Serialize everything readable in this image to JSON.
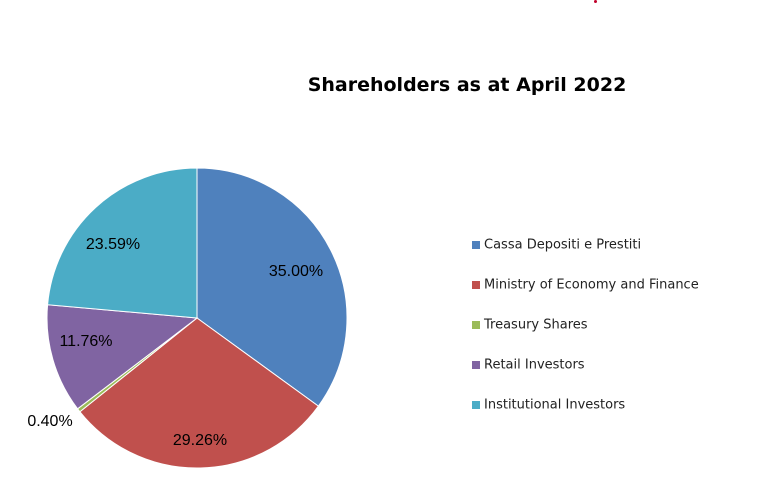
{
  "chart_data": {
    "type": "pie",
    "title": "Shareholders as at April 2022",
    "categories": [
      "Cassa Depositi e Prestiti",
      "Ministry of Economy and Finance",
      "Treasury Shares",
      "Retail Investors",
      "Institutional Investors"
    ],
    "values": [
      35.0,
      29.26,
      0.4,
      11.76,
      23.59
    ],
    "data_labels": [
      "35.00%",
      "29.26%",
      "0.40%",
      "11.76%",
      "23.59%"
    ],
    "colors": [
      "#4F81BD",
      "#C0504D",
      "#9BBB59",
      "#8064A2",
      "#4BACC6"
    ],
    "legend_placement": "right",
    "start_angle": "12 o'clock",
    "direction": "clockwise"
  }
}
